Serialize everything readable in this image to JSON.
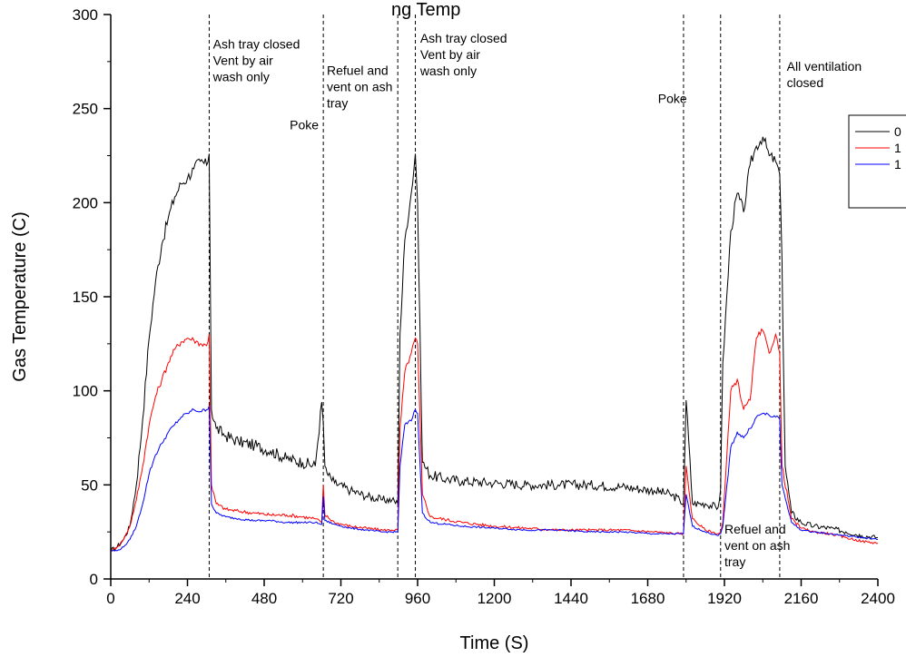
{
  "chart_data": {
    "type": "line",
    "title": "ng Temp",
    "xlabel": "Time (S)",
    "ylabel": "Gas Temperature (C)",
    "xlim": [
      0,
      2400
    ],
    "ylim": [
      0,
      300
    ],
    "x_ticks": [
      0,
      240,
      480,
      720,
      960,
      1200,
      1440,
      1680,
      1920,
      2160,
      2400
    ],
    "y_ticks": [
      0,
      50,
      100,
      150,
      200,
      250,
      300
    ],
    "grid": false,
    "legend_position": "top-right",
    "vlines": [
      308,
      665,
      898,
      953,
      1792,
      1908,
      2093
    ],
    "annotations": [
      {
        "lines": [
          "Ash tray closed",
          "Vent by air",
          "wash only"
        ],
        "x": 320,
        "y": 282
      },
      {
        "lines": [
          "Poke"
        ],
        "x": 560,
        "y": 239
      },
      {
        "lines": [
          "Refuel and",
          "vent on ash",
          "tray"
        ],
        "x": 676,
        "y": 268
      },
      {
        "lines": [
          "Ash tray closed",
          "Vent by air",
          "wash only"
        ],
        "x": 968,
        "y": 285
      },
      {
        "lines": [
          "Poke"
        ],
        "x": 1712,
        "y": 253
      },
      {
        "lines": [
          "Refuel and",
          "vent on ash",
          "tray"
        ],
        "x": 1920,
        "y": 24
      },
      {
        "lines": [
          "All ventilation",
          "closed"
        ],
        "x": 2115,
        "y": 270
      }
    ],
    "series": [
      {
        "name": "0",
        "color": "#000000",
        "x": [
          0,
          20,
          40,
          60,
          80,
          100,
          120,
          140,
          160,
          180,
          200,
          220,
          240,
          260,
          280,
          300,
          308,
          315,
          330,
          360,
          400,
          450,
          500,
          550,
          600,
          640,
          660,
          665,
          670,
          680,
          700,
          750,
          800,
          850,
          880,
          898,
          905,
          920,
          940,
          953,
          960,
          975,
          1000,
          1050,
          1100,
          1200,
          1300,
          1400,
          1500,
          1600,
          1700,
          1750,
          1780,
          1792,
          1800,
          1820,
          1860,
          1900,
          1908,
          1915,
          1940,
          1960,
          1980,
          2000,
          2020,
          2040,
          2060,
          2080,
          2093,
          2100,
          2110,
          2130,
          2160,
          2200,
          2250,
          2300,
          2350,
          2400
        ],
        "y": [
          15,
          17,
          21,
          28,
          50,
          85,
          128,
          158,
          178,
          192,
          203,
          210,
          213,
          218,
          222,
          220,
          226,
          90,
          80,
          76,
          73,
          71,
          68,
          64,
          62,
          60,
          94,
          83,
          60,
          55,
          51,
          47,
          44,
          42,
          42,
          40,
          130,
          180,
          205,
          226,
          200,
          62,
          55,
          53,
          52,
          51,
          50,
          50,
          50,
          49,
          47,
          45,
          42,
          40,
          95,
          40,
          40,
          38,
          48,
          115,
          185,
          205,
          195,
          220,
          230,
          235,
          225,
          222,
          215,
          170,
          60,
          35,
          30,
          28,
          27,
          25,
          23,
          22
        ]
      },
      {
        "name": "1",
        "color": "#ff0000",
        "x": [
          0,
          20,
          40,
          60,
          80,
          100,
          120,
          140,
          160,
          180,
          200,
          220,
          240,
          260,
          280,
          300,
          308,
          315,
          330,
          360,
          400,
          450,
          500,
          550,
          600,
          640,
          660,
          665,
          670,
          700,
          750,
          800,
          850,
          880,
          898,
          905,
          920,
          940,
          953,
          960,
          975,
          1000,
          1100,
          1200,
          1300,
          1400,
          1500,
          1600,
          1700,
          1780,
          1792,
          1800,
          1820,
          1860,
          1900,
          1908,
          1915,
          1940,
          1960,
          1980,
          2000,
          2020,
          2040,
          2060,
          2080,
          2093,
          2100,
          2130,
          2160,
          2200,
          2250,
          2300,
          2350,
          2400
        ],
        "y": [
          15,
          17,
          21,
          28,
          42,
          60,
          82,
          97,
          106,
          115,
          122,
          126,
          128,
          127,
          125,
          124,
          130,
          50,
          40,
          37,
          36,
          35,
          34,
          34,
          33,
          32,
          30,
          50,
          34,
          30,
          28,
          27,
          26,
          26,
          26,
          80,
          110,
          120,
          128,
          125,
          45,
          33,
          30,
          28,
          27,
          26,
          26,
          26,
          25,
          24,
          24,
          60,
          32,
          26,
          24,
          25,
          30,
          100,
          106,
          90,
          95,
          128,
          132,
          120,
          130,
          120,
          60,
          32,
          27,
          25,
          24,
          22,
          20,
          19
        ]
      },
      {
        "name": "1",
        "color": "#0000ff",
        "x": [
          0,
          20,
          40,
          60,
          80,
          100,
          120,
          140,
          160,
          180,
          200,
          220,
          240,
          260,
          280,
          300,
          308,
          315,
          330,
          360,
          400,
          450,
          500,
          550,
          600,
          640,
          660,
          665,
          670,
          700,
          750,
          800,
          850,
          880,
          898,
          905,
          920,
          940,
          953,
          960,
          975,
          1000,
          1100,
          1200,
          1300,
          1400,
          1500,
          1600,
          1700,
          1780,
          1792,
          1800,
          1820,
          1860,
          1900,
          1908,
          1915,
          1940,
          1960,
          1980,
          2000,
          2020,
          2040,
          2060,
          2080,
          2093,
          2100,
          2130,
          2160,
          2200,
          2250,
          2300,
          2350,
          2400
        ],
        "y": [
          15,
          15,
          17,
          21,
          28,
          40,
          56,
          66,
          72,
          78,
          82,
          86,
          88,
          90,
          89,
          90,
          92,
          40,
          35,
          33,
          32,
          31,
          31,
          30,
          30,
          30,
          29,
          44,
          31,
          29,
          27,
          26,
          25,
          25,
          25,
          60,
          82,
          84,
          90,
          88,
          35,
          30,
          28,
          27,
          26,
          26,
          25,
          25,
          24,
          24,
          24,
          45,
          28,
          25,
          23,
          24,
          28,
          70,
          78,
          75,
          80,
          86,
          88,
          87,
          86,
          85,
          50,
          30,
          26,
          25,
          24,
          23,
          22,
          21
        ]
      }
    ]
  }
}
